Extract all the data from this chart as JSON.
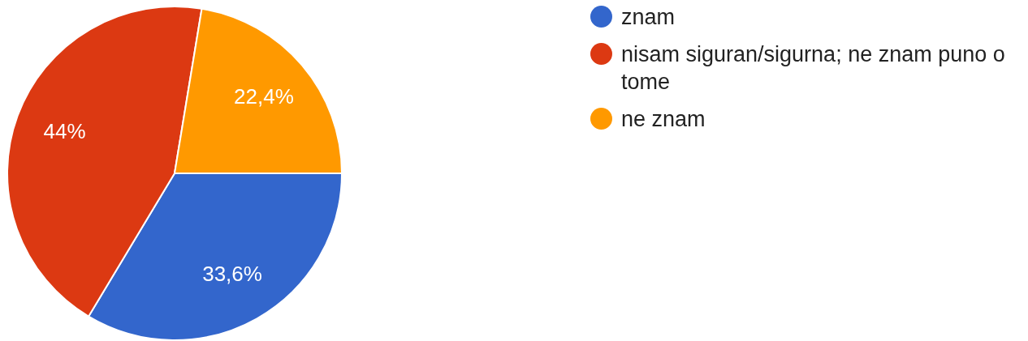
{
  "chart_data": {
    "type": "pie",
    "categories": [
      "znam",
      "nisam siguran/sigurna; ne znam puno o tome",
      "ne znam"
    ],
    "values": [
      33.6,
      44,
      22.4
    ],
    "value_labels": [
      "33,6%",
      "44%",
      "22,4%"
    ],
    "colors": [
      "#3366cc",
      "#dc3912",
      "#ff9900"
    ],
    "legend": "top right"
  }
}
